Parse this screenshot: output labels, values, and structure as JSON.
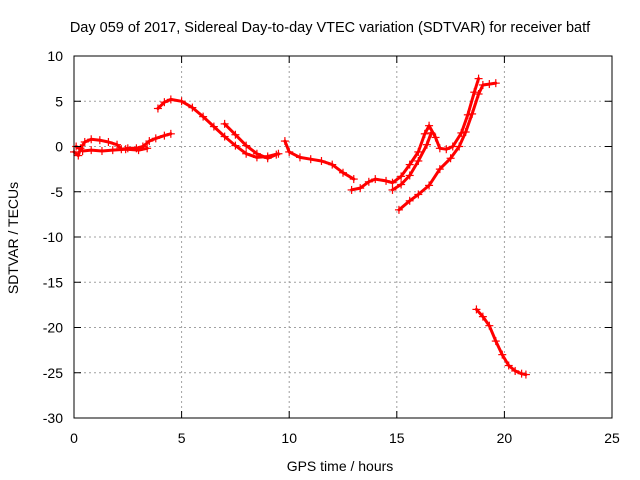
{
  "chart_data": {
    "type": "scatter",
    "title": "Day 059 of 2017, Sidereal Day-to-day VTEC variation (SDTVAR) for receiver batf",
    "xlabel": "GPS time / hours",
    "ylabel": "SDTVAR / TECUs",
    "xlim": [
      0,
      25
    ],
    "ylim": [
      -30,
      10
    ],
    "xticks": [
      "0",
      "5",
      "10",
      "15",
      "20",
      "25"
    ],
    "yticks": [
      "10",
      "5",
      "0",
      "-5",
      "-10",
      "-15",
      "-20",
      "-25",
      "-30"
    ],
    "grid": true,
    "color": "#ff0000",
    "series": [
      {
        "name": "seg1",
        "points": [
          [
            0.0,
            -0.6
          ],
          [
            0.2,
            -1.0
          ],
          [
            0.3,
            -0.2
          ],
          [
            0.5,
            0.5
          ],
          [
            0.8,
            0.8
          ],
          [
            1.2,
            0.7
          ],
          [
            1.6,
            0.5
          ],
          [
            2.0,
            0.2
          ],
          [
            2.2,
            -0.3
          ],
          [
            2.5,
            -0.2
          ],
          [
            2.9,
            -0.2
          ],
          [
            3.2,
            0.0
          ],
          [
            3.5,
            0.6
          ],
          [
            3.8,
            0.9
          ],
          [
            4.2,
            1.2
          ],
          [
            4.5,
            1.4
          ]
        ]
      },
      {
        "name": "seg2",
        "points": [
          [
            0.1,
            0.0
          ],
          [
            0.4,
            -0.5
          ],
          [
            0.8,
            -0.4
          ],
          [
            1.3,
            -0.5
          ],
          [
            1.8,
            -0.4
          ],
          [
            2.4,
            -0.3
          ],
          [
            3.0,
            -0.4
          ],
          [
            3.4,
            -0.2
          ]
        ]
      },
      {
        "name": "seg3",
        "points": [
          [
            3.9,
            4.2
          ],
          [
            4.2,
            4.9
          ],
          [
            4.5,
            5.2
          ],
          [
            5.0,
            5.0
          ],
          [
            5.5,
            4.3
          ],
          [
            6.0,
            3.3
          ],
          [
            6.5,
            2.2
          ],
          [
            7.0,
            1.1
          ],
          [
            7.5,
            0.1
          ],
          [
            8.0,
            -0.8
          ],
          [
            8.5,
            -1.2
          ],
          [
            9.0,
            -1.1
          ],
          [
            9.5,
            -0.8
          ]
        ]
      },
      {
        "name": "seg4",
        "points": [
          [
            7.0,
            2.5
          ],
          [
            7.5,
            1.3
          ],
          [
            8.0,
            0.1
          ],
          [
            8.5,
            -0.8
          ],
          [
            9.0,
            -1.3
          ],
          [
            9.4,
            -0.9
          ]
        ]
      },
      {
        "name": "seg5",
        "points": [
          [
            9.8,
            0.6
          ],
          [
            10.0,
            -0.6
          ],
          [
            10.5,
            -1.2
          ],
          [
            11.0,
            -1.4
          ],
          [
            11.5,
            -1.6
          ],
          [
            12.0,
            -2.0
          ],
          [
            12.5,
            -2.9
          ],
          [
            13.0,
            -3.6
          ]
        ]
      },
      {
        "name": "seg6",
        "points": [
          [
            12.9,
            -4.8
          ],
          [
            13.3,
            -4.6
          ],
          [
            13.7,
            -3.9
          ],
          [
            14.0,
            -3.6
          ],
          [
            14.5,
            -3.8
          ],
          [
            14.8,
            -4.0
          ],
          [
            15.2,
            -3.3
          ],
          [
            15.6,
            -2.0
          ],
          [
            16.0,
            -0.6
          ],
          [
            16.3,
            1.4
          ],
          [
            16.5,
            2.3
          ],
          [
            16.8,
            1.0
          ],
          [
            17.0,
            -0.2
          ],
          [
            17.3,
            -0.3
          ],
          [
            17.6,
            0.0
          ],
          [
            18.0,
            1.5
          ],
          [
            18.3,
            3.5
          ],
          [
            18.6,
            6.0
          ],
          [
            18.8,
            7.5
          ]
        ]
      },
      {
        "name": "seg7",
        "points": [
          [
            14.8,
            -4.8
          ],
          [
            15.2,
            -4.2
          ],
          [
            15.6,
            -3.2
          ],
          [
            16.0,
            -1.6
          ],
          [
            16.4,
            0.2
          ],
          [
            16.6,
            1.5
          ]
        ]
      },
      {
        "name": "seg8",
        "points": [
          [
            15.1,
            -7.0
          ],
          [
            15.6,
            -6.0
          ],
          [
            16.0,
            -5.3
          ],
          [
            16.5,
            -4.3
          ],
          [
            17.0,
            -2.5
          ],
          [
            17.5,
            -1.3
          ],
          [
            17.9,
            0.0
          ],
          [
            18.2,
            1.6
          ],
          [
            18.5,
            3.6
          ],
          [
            18.8,
            5.8
          ],
          [
            19.0,
            6.8
          ],
          [
            19.3,
            6.9
          ],
          [
            19.6,
            7.0
          ]
        ]
      },
      {
        "name": "seg9",
        "points": [
          [
            18.7,
            -18.0
          ],
          [
            19.0,
            -18.8
          ],
          [
            19.3,
            -19.8
          ],
          [
            19.6,
            -21.5
          ],
          [
            19.9,
            -23.0
          ],
          [
            20.2,
            -24.2
          ],
          [
            20.5,
            -24.8
          ],
          [
            20.8,
            -25.1
          ],
          [
            21.0,
            -25.2
          ]
        ]
      }
    ]
  }
}
